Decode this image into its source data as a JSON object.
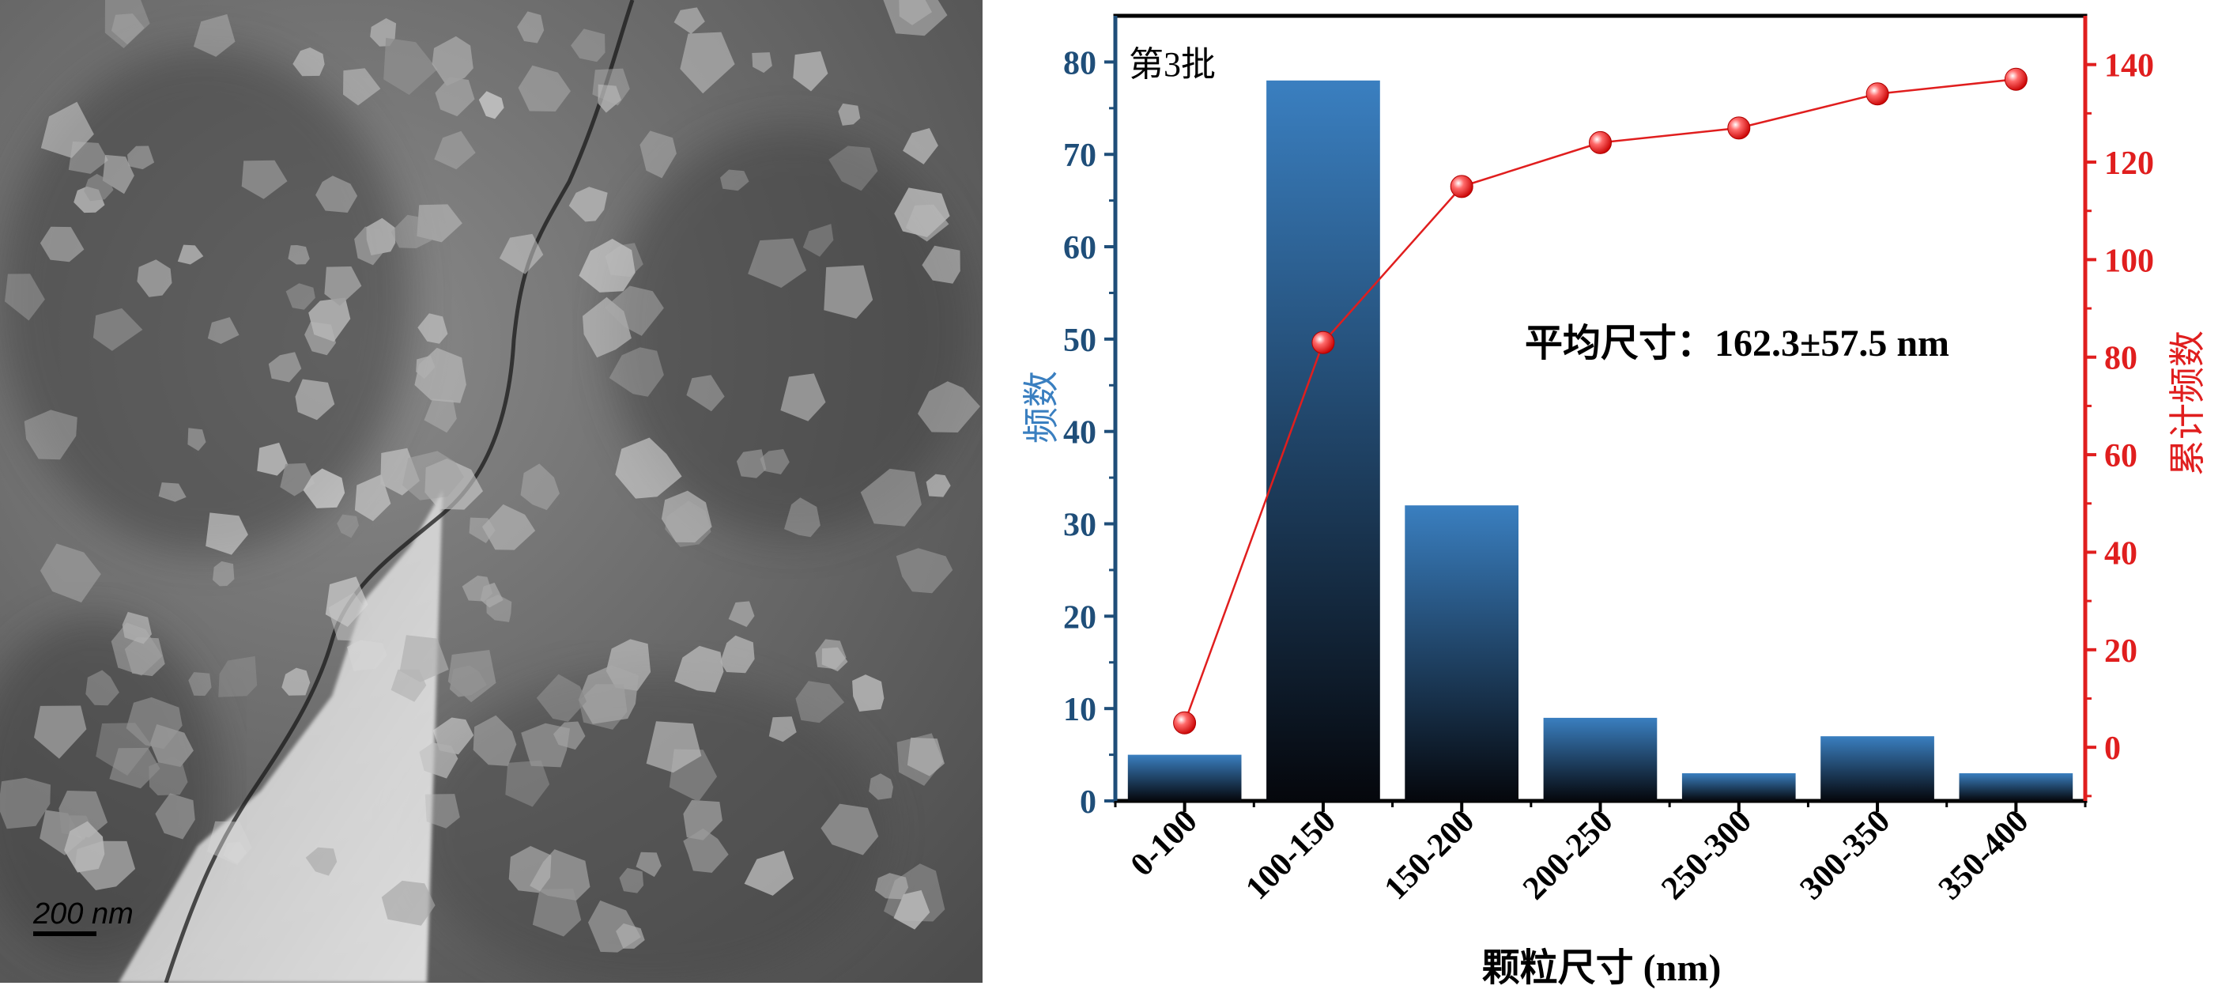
{
  "tem_image": {
    "description_icon": "tem-micrograph",
    "scale_bar_label": "200 nm"
  },
  "chart_data": {
    "type": "bar",
    "batch_label": "第3批",
    "annotation": "平均尺寸：162.3±57.5 nm",
    "categories": [
      "0-100",
      "100-150",
      "150-200",
      "200-250",
      "250-300",
      "300-350",
      "350-400"
    ],
    "xlabel": "颗粒尺寸 (nm)",
    "ylabel": "频数",
    "y2label": "累计频数",
    "ylim": [
      0,
      85
    ],
    "y2lim": [
      -11,
      150
    ],
    "yticks": [
      0,
      10,
      20,
      30,
      40,
      50,
      60,
      70,
      80
    ],
    "y2ticks": [
      0,
      20,
      40,
      60,
      80,
      100,
      120,
      140
    ],
    "series": [
      {
        "kind": "bar",
        "axis": "left",
        "values": [
          5,
          78,
          32,
          9,
          3,
          7,
          3
        ]
      },
      {
        "kind": "line",
        "axis": "right",
        "values": [
          5,
          83,
          115,
          124,
          127,
          134,
          137
        ]
      }
    ],
    "colors": {
      "bar_top": "#3a7fc0",
      "bar_bottom": "#05070c",
      "left_axis": "#1f4e79",
      "right_axis": "#e01e1e",
      "line": "#e01e1e"
    }
  }
}
